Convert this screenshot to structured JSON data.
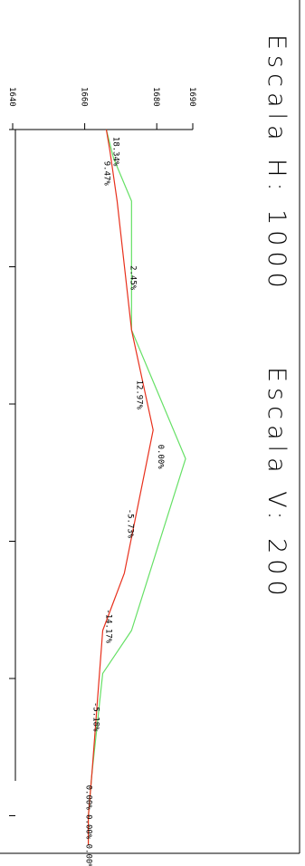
{
  "titles": {
    "scale_h": "Escala H: 1000",
    "scale_v": "Escala V: 200"
  },
  "colors": {
    "frame": "#000000",
    "terrain": "#66e066",
    "design": "#e8301c",
    "overlap": "#a0612a"
  },
  "elevation_axis": {
    "ticks": [
      {
        "value": 1640,
        "label": "1640"
      },
      {
        "value": 1660,
        "label": "1660"
      },
      {
        "value": 1680,
        "label": "1680"
      },
      {
        "value": 1690,
        "label": "1690"
      }
    ]
  },
  "chart_data": {
    "type": "line",
    "title": "",
    "xlabel": "",
    "ylabel": "",
    "ylim": [
      1640,
      1690
    ],
    "x": [
      0,
      6.5,
      13,
      19.5,
      26,
      32.5,
      39,
      45.5,
      52,
      58.5,
      65,
      71.5,
      78,
      84.5
    ],
    "series": [
      {
        "key": "terrain",
        "color": "#66e066",
        "points": [
          [
            0,
            1666
          ],
          [
            2,
            1668
          ],
          [
            5,
            1673
          ],
          [
            14,
            1673
          ],
          [
            23,
            1688
          ],
          [
            35,
            1673
          ],
          [
            38,
            1665
          ],
          [
            45,
            1662
          ],
          [
            48,
            1661
          ],
          [
            50,
            1661
          ]
        ]
      },
      {
        "key": "design",
        "color": "#e8301c",
        "points": [
          [
            0,
            1666
          ],
          [
            1.5,
            1667
          ],
          [
            5,
            1669
          ],
          [
            14,
            1673
          ],
          [
            21,
            1679
          ],
          [
            31,
            1671
          ],
          [
            35,
            1665
          ],
          [
            45,
            1662
          ],
          [
            48,
            1661
          ],
          [
            50,
            1661
          ]
        ]
      }
    ],
    "slope_labels": [
      {
        "text": "18.34%",
        "x": 0.5,
        "elev": 1668
      },
      {
        "text": "9.47%",
        "x": 2.2,
        "elev": 1665.5
      },
      {
        "text": "2.45%",
        "x": 9.5,
        "elev": 1672.8
      },
      {
        "text": "12.97%",
        "x": 17.5,
        "elev": 1674.5
      },
      {
        "text": "0.00%",
        "x": 22,
        "elev": 1680.5
      },
      {
        "text": "-5.73%",
        "x": 26.5,
        "elev": 1672
      },
      {
        "text": "-14.17%",
        "x": 33.5,
        "elev": 1666
      },
      {
        "text": "-5.18%",
        "x": 40,
        "elev": 1662.5
      },
      {
        "text": "0.00% 0.00% 0.00%",
        "x": 45.8,
        "elev": 1660.5
      }
    ]
  }
}
